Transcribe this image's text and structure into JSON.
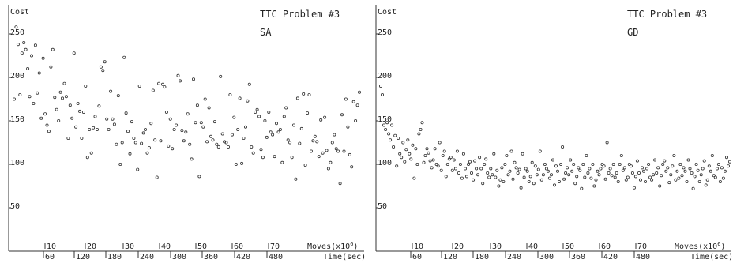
{
  "chart_data": [
    {
      "type": "scatter",
      "title": "TTC Problem #3",
      "subtitle": "SA",
      "ylabel": "Cost",
      "xlabel_top": "Moves(x10",
      "xlabel_top_exp": "6",
      "xlabel_bottom": "Time(sec)",
      "ylim": [
        0,
        280
      ],
      "y_ticks": [
        "50",
        "100",
        "150",
        "200",
        "250"
      ],
      "x_ticks_moves": [
        "10",
        "20",
        "30",
        "40",
        "50",
        "60",
        "70"
      ],
      "x_ticks_time": [
        "60",
        "120",
        "180",
        "240",
        "300",
        "360",
        "420",
        "480"
      ],
      "grid": false,
      "x": [
        1,
        2,
        3,
        4,
        5,
        6,
        7,
        8,
        9,
        10,
        11,
        12,
        13,
        14,
        15,
        16,
        17,
        18,
        19,
        20,
        21,
        22,
        23,
        24,
        25,
        26,
        27,
        28,
        29,
        30,
        31,
        32,
        33,
        34,
        35,
        36,
        37,
        38,
        39,
        40,
        41,
        42,
        43,
        44,
        45,
        46,
        47,
        48,
        49,
        50,
        51,
        52,
        53,
        54,
        55,
        56,
        57,
        58,
        59,
        60,
        61,
        62,
        63,
        64,
        65,
        66,
        67,
        68,
        69,
        70,
        71,
        72,
        73,
        74,
        75,
        76,
        77,
        78,
        79,
        80,
        81,
        82,
        83,
        84,
        85,
        86,
        87,
        88,
        89,
        90,
        91,
        92,
        93,
        94,
        95,
        96,
        97,
        98,
        99,
        100,
        101,
        102,
        103,
        104,
        105,
        106,
        107,
        108,
        109,
        110,
        111,
        112,
        113,
        114,
        115,
        116,
        117,
        118,
        119,
        120,
        121,
        122,
        123,
        124,
        125,
        126,
        127,
        128,
        129,
        130,
        131,
        132,
        133,
        134,
        135,
        136,
        137,
        138,
        139,
        140,
        141,
        142,
        143,
        144,
        145,
        146,
        147,
        148,
        149,
        150,
        151,
        152,
        153,
        154,
        155,
        156,
        157,
        158,
        159,
        160,
        161,
        162,
        163,
        164,
        165,
        166,
        167,
        168,
        169,
        170,
        171,
        172,
        173,
        174,
        175,
        176,
        177,
        178,
        179,
        180
      ],
      "y": [
        175,
        258,
        238,
        180,
        228,
        240,
        232,
        210,
        178,
        225,
        170,
        237,
        182,
        205,
        153,
        222,
        158,
        145,
        138,
        212,
        232,
        177,
        163,
        150,
        183,
        176,
        193,
        178,
        130,
        168,
        153,
        228,
        143,
        170,
        161,
        130,
        160,
        190,
        108,
        140,
        113,
        142,
        155,
        140,
        167,
        212,
        208,
        218,
        152,
        140,
        184,
        152,
        146,
        123,
        179,
        100,
        125,
        223,
        159,
        138,
        112,
        149,
        130,
        125,
        94,
        190,
        124,
        136,
        140,
        113,
        119,
        147,
        185,
        128,
        85,
        193,
        127,
        192,
        189,
        160,
        121,
        152,
        118,
        140,
        145,
        202,
        196,
        139,
        127,
        137,
        158,
        123,
        106,
        198,
        148,
        168,
        86,
        148,
        143,
        175,
        126,
        165,
        132,
        128,
        149,
        123,
        120,
        201,
        135,
        126,
        125,
        120,
        180,
        134,
        154,
        100,
        140,
        176,
        101,
        130,
        143,
        173,
        192,
        120,
        113,
        160,
        163,
        155,
        117,
        108,
        150,
        131,
        160,
        137,
        134,
        109,
        147,
        137,
        140,
        102,
        155,
        165,
        128,
        125,
        108,
        145,
        83,
        176,
        124,
        141,
        181,
        99,
        159,
        180,
        115,
        127,
        132,
        126,
        109,
        151,
        113,
        154,
        116,
        95,
        102,
        125,
        134,
        118,
        115,
        78,
        157,
        115,
        175,
        143,
        111,
        97,
        172,
        150,
        168,
        183
      ]
    },
    {
      "type": "scatter",
      "title": "TTC Problem #3",
      "subtitle": "GD",
      "ylabel": "Cost",
      "xlabel_top": "Moves(x10",
      "xlabel_top_exp": "6",
      "xlabel_bottom": "Time(sec)",
      "ylim": [
        0,
        280
      ],
      "y_ticks": [
        "50",
        "100",
        "150",
        "200",
        "250"
      ],
      "x_ticks_moves": [
        "10",
        "20",
        "30",
        "40",
        "50",
        "60",
        "70"
      ],
      "x_ticks_time": [
        "60",
        "120",
        "180",
        "240",
        "300",
        "360",
        "420",
        "480"
      ],
      "grid": false,
      "x": [
        1,
        2,
        3,
        4,
        5,
        6,
        7,
        8,
        9,
        10,
        11,
        12,
        13,
        14,
        15,
        16,
        17,
        18,
        19,
        20,
        21,
        22,
        23,
        24,
        25,
        26,
        27,
        28,
        29,
        30,
        31,
        32,
        33,
        34,
        35,
        36,
        37,
        38,
        39,
        40,
        41,
        42,
        43,
        44,
        45,
        46,
        47,
        48,
        49,
        50,
        51,
        52,
        53,
        54,
        55,
        56,
        57,
        58,
        59,
        60,
        61,
        62,
        63,
        64,
        65,
        66,
        67,
        68,
        69,
        70,
        71,
        72,
        73,
        74,
        75,
        76,
        77,
        78,
        79,
        80,
        81,
        82,
        83,
        84,
        85,
        86,
        87,
        88,
        89,
        90,
        91,
        92,
        93,
        94,
        95,
        96,
        97,
        98,
        99,
        100,
        101,
        102,
        103,
        104,
        105,
        106,
        107,
        108,
        109,
        110,
        111,
        112,
        113,
        114,
        115,
        116,
        117,
        118,
        119,
        120,
        121,
        122,
        123,
        124,
        125,
        126,
        127,
        128,
        129,
        130,
        131,
        132,
        133,
        134,
        135,
        136,
        137,
        138,
        139,
        140,
        141,
        142,
        143,
        144,
        145,
        146,
        147,
        148,
        149,
        150,
        151,
        152,
        153,
        154,
        155,
        156,
        157,
        158,
        159,
        160,
        161,
        162,
        163,
        164,
        165,
        166,
        167,
        168,
        169,
        170,
        171,
        172,
        173,
        174,
        175,
        176,
        177,
        178,
        179,
        180,
        181,
        182,
        183,
        184,
        185,
        186,
        187,
        188,
        189,
        190,
        191,
        192,
        193,
        194,
        195,
        196,
        197,
        198,
        199,
        200,
        201,
        202,
        203,
        204,
        205,
        206,
        207,
        208,
        209,
        210,
        211,
        212,
        213,
        214,
        215,
        216,
        217,
        218,
        219,
        220
      ],
      "y": [
        190,
        180,
        145,
        140,
        148,
        135,
        128,
        145,
        120,
        133,
        98,
        130,
        112,
        108,
        125,
        103,
        117,
        128,
        112,
        106,
        122,
        84,
        118,
        100,
        135,
        140,
        148,
        102,
        110,
        118,
        113,
        104,
        96,
        105,
        118,
        100,
        98,
        125,
        93,
        110,
        115,
        86,
        100,
        106,
        108,
        93,
        105,
        95,
        115,
        90,
        100,
        84,
        112,
        95,
        86,
        100,
        103,
        90,
        82,
        104,
        95,
        88,
        108,
        95,
        78,
        100,
        106,
        90,
        85,
        95,
        88,
        112,
        85,
        93,
        75,
        82,
        96,
        80,
        100,
        110,
        88,
        92,
        115,
        83,
        102,
        96,
        90,
        94,
        73,
        112,
        85,
        95,
        92,
        80,
        86,
        102,
        78,
        98,
        88,
        94,
        115,
        82,
        88,
        100,
        95,
        92,
        84,
        88,
        105,
        76,
        98,
        92,
        80,
        100,
        120,
        83,
        90,
        96,
        88,
        105,
        92,
        100,
        78,
        86,
        96,
        93,
        72,
        100,
        85,
        110,
        90,
        95,
        84,
        100,
        75,
        82,
        92,
        88,
        95,
        100,
        98,
        83,
        125,
        90,
        95,
        87,
        100,
        85,
        90,
        80,
        100,
        110,
        93,
        96,
        82,
        85,
        100,
        98,
        90,
        73,
        86,
        104,
        90,
        82,
        96,
        92,
        80,
        95,
        100,
        85,
        82,
        88,
        105,
        90,
        96,
        75,
        87,
        100,
        104,
        92,
        96,
        79,
        88,
        98,
        110,
        82,
        92,
        84,
        100,
        87,
        96,
        92,
        80,
        105,
        95,
        90,
        72,
        86,
        100,
        93,
        80,
        88,
        95,
        104,
        76,
        82,
        98,
        92,
        110,
        87,
        85,
        95,
        100,
        80,
        96,
        84,
        92,
        108,
        98,
        103
      ]
    }
  ]
}
